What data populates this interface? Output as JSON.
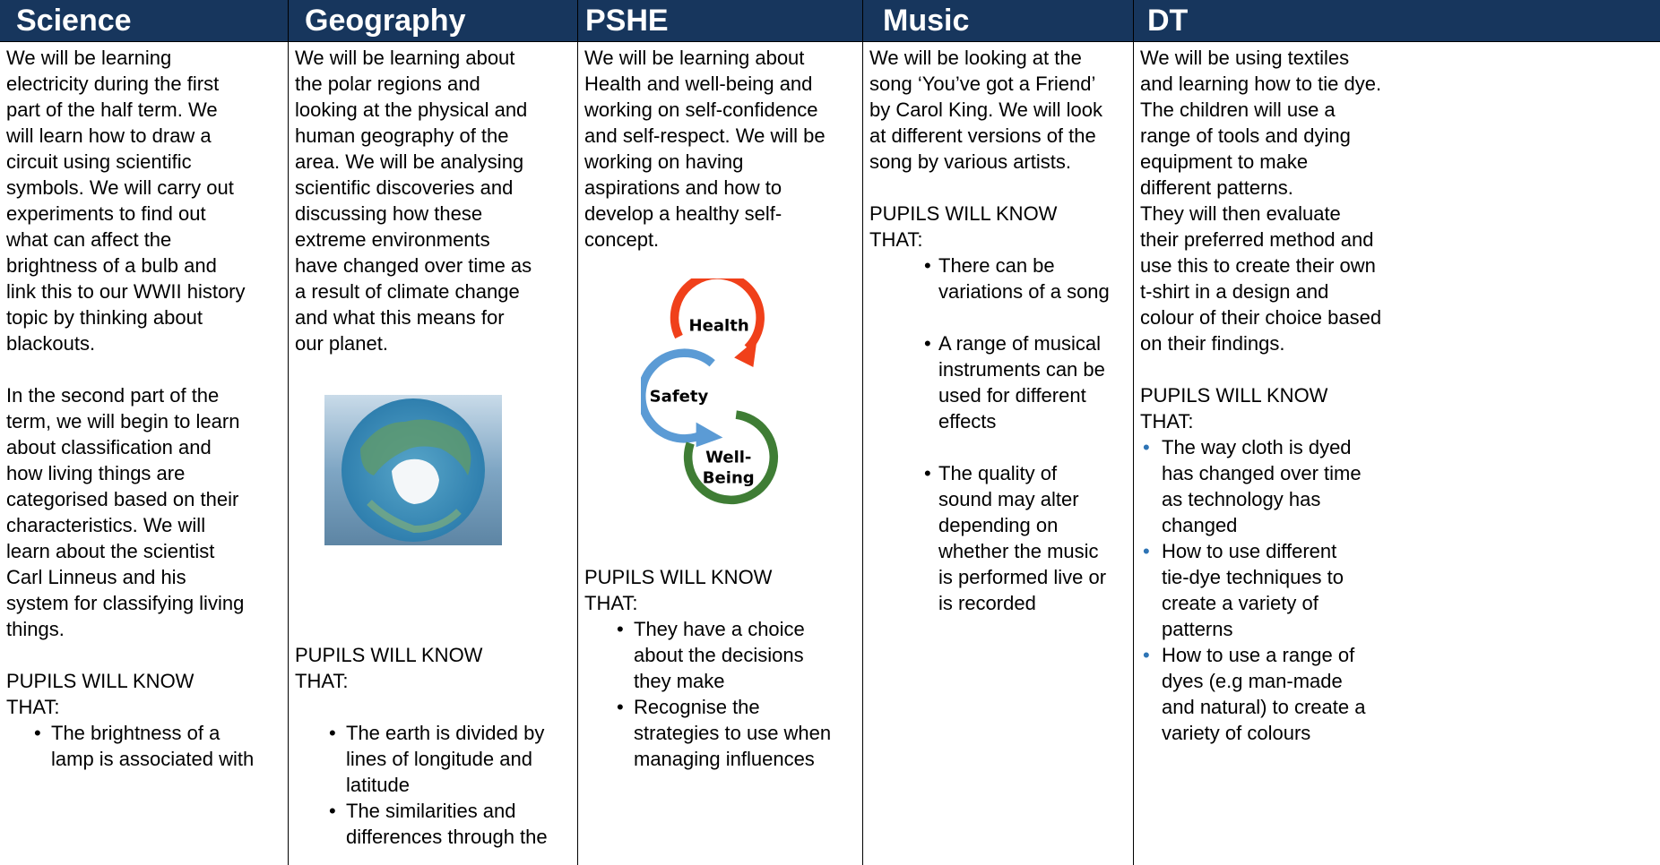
{
  "columns": [
    {
      "title": "Science",
      "paragraphs": [
        [
          "We will be learning",
          "electricity during the first",
          "part of the half term.  We",
          "will learn how to draw a",
          "circuit using scientific",
          "symbols. We will carry out",
          "experiments to find out",
          "what can affect the",
          "brightness of a bulb and",
          "link this to our WWII history",
          "topic by thinking about",
          "blackouts."
        ],
        [
          "In the second part of the",
          "term, we will begin to learn",
          "about classification and",
          "how living things are",
          "categorised based on their",
          "characteristics.  We will",
          "learn about the scientist",
          "Carl Linneus and his",
          "system for classifying living",
          "things."
        ]
      ],
      "know_heading": [
        "PUPILS WILL KNOW",
        "THAT:"
      ],
      "bullets": [
        [
          "The brightness of a",
          "lamp is associated with"
        ]
      ]
    },
    {
      "title": "Geography",
      "paragraphs": [
        [
          "We will be learning about",
          "the polar regions and",
          "looking at the physical and",
          "human geography of the",
          "area. We will be analysing",
          "scientific discoveries and",
          "discussing how these",
          "extreme environments",
          "have changed over time as",
          "a result of climate change",
          "and what this means for",
          "our planet."
        ]
      ],
      "know_heading": [
        "PUPILS WILL KNOW",
        "THAT:"
      ],
      "bullets": [
        [
          "The earth is divided by",
          "lines of longitude and",
          "latitude"
        ],
        [
          "The similarities and",
          "differences through the"
        ]
      ]
    },
    {
      "title": "PSHE",
      "paragraphs": [
        [
          "We will be learning about",
          "Health and well-being and",
          "working on self-confidence",
          "and self-respect. We will be",
          "working on having",
          "aspirations and how to",
          "develop a healthy self-",
          "concept."
        ]
      ],
      "diagram": {
        "health": "Health",
        "safety": "Safety",
        "well_being": [
          "Well-",
          "Being"
        ]
      },
      "know_heading": [
        "PUPILS WILL KNOW",
        "THAT:"
      ],
      "bullets": [
        [
          "They have a choice",
          "about the decisions",
          "they make"
        ],
        [
          "Recognise the",
          "strategies to use when",
          "managing influences"
        ]
      ]
    },
    {
      "title": "Music",
      "paragraphs": [
        [
          "We will be looking at the",
          "song ‘You’ve got a Friend’",
          "by Carol King.  We will look",
          "at different versions of the",
          "song by various artists."
        ]
      ],
      "know_heading": [
        "PUPILS WILL KNOW",
        "THAT:"
      ],
      "bullets": [
        [
          "There can be",
          "variations of a song"
        ],
        [
          "A range of musical",
          "instruments can be",
          "used for different",
          "effects"
        ],
        [
          "The quality of",
          "sound may alter",
          "depending on",
          "whether the music",
          "is performed live or",
          "is recorded"
        ]
      ]
    },
    {
      "title": "DT",
      "paragraphs": [
        [
          "We will be using textiles",
          "and learning how to tie dye.",
          "The children will use a",
          "range of tools and dying",
          "equipment to make",
          "different patterns.",
          "They will then evaluate",
          "their preferred method and",
          "use this to create their own",
          "t-shirt in a design and",
          "colour of their choice based",
          "on their findings."
        ]
      ],
      "know_heading": [
        "PUPILS WILL KNOW",
        "THAT:"
      ],
      "bullets": [
        [
          "The way cloth is dyed",
          "has changed over time",
          "as technology has",
          "changed"
        ],
        [
          "How to use different",
          "tie-dye techniques to",
          "create a variety of",
          "patterns"
        ],
        [
          "How to use a range of",
          "dyes (e.g man-made",
          "and natural) to create a",
          "variety of colours"
        ]
      ]
    }
  ]
}
